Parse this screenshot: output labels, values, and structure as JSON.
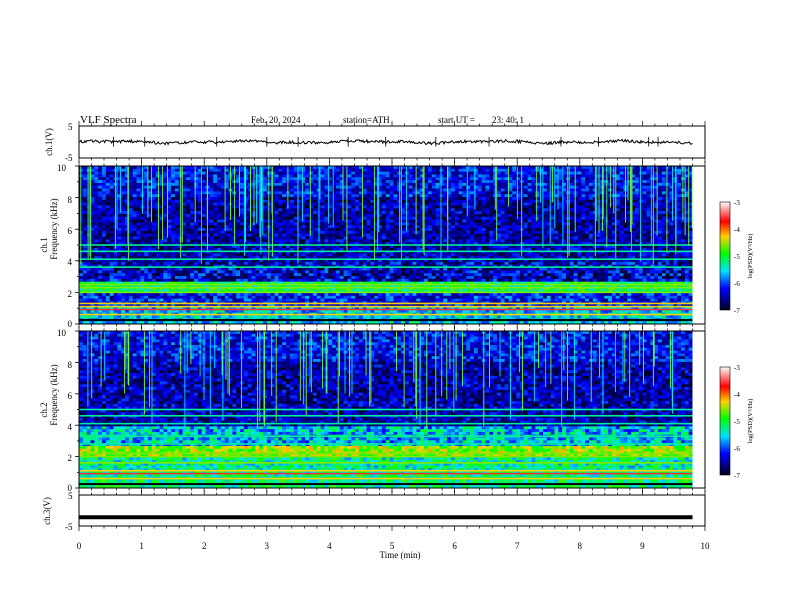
{
  "header": {
    "title": "VLF Spectra",
    "date": "Feb. 20, 2024",
    "station": "station=ATH",
    "start_ut": "start UT =",
    "start_time": "23: 40: 1"
  },
  "ch1_wave": {
    "ylabel": "ch.1(V)",
    "yticks": [
      "5",
      "-5"
    ]
  },
  "ch1_spec": {
    "ylabel_top": "ch.1",
    "ylabel": "Frequency (kHz)",
    "yticks": [
      "10",
      "8",
      "6",
      "4",
      "2",
      "0"
    ]
  },
  "ch2_spec": {
    "ylabel_top": "ch.2",
    "ylabel": "Frequency (kHz)",
    "yticks": [
      "10",
      "8",
      "6",
      "4",
      "2",
      "0"
    ]
  },
  "ch3_wave": {
    "ylabel": "ch.3(V)",
    "yticks": [
      "5",
      "-5"
    ]
  },
  "xaxis": {
    "label": "Time (min)",
    "ticks": [
      "0",
      "1",
      "2",
      "3",
      "4",
      "5",
      "6",
      "7",
      "8",
      "9",
      "10"
    ]
  },
  "colorbar": {
    "label": "log(PSD)(V²/Hz)",
    "ticks": [
      "-3",
      "-4",
      "-5",
      "-6",
      "-7"
    ],
    "colors": [
      "#ffffff",
      "#ff0000",
      "#ffff00",
      "#00ff00",
      "#00ffff",
      "#0000ff",
      "#000020"
    ]
  },
  "chart_data": [
    {
      "type": "line",
      "title": "",
      "xlabel": "Time (min)",
      "ylabel": "ch.1(V)",
      "xlim": [
        0,
        10
      ],
      "ylim": [
        -5,
        5
      ],
      "series": [
        {
          "x": [
            0,
            1,
            2,
            3,
            4,
            5,
            6,
            7,
            8,
            9,
            9.8
          ],
          "values": [
            0.3,
            0.2,
            0.0,
            0.2,
            0.1,
            0.1,
            0.3,
            0.0,
            0.1,
            -0.2,
            0.1
          ]
        }
      ]
    },
    {
      "type": "heatmap",
      "title": "",
      "xlabel": "Time (min)",
      "ylabel": "Frequency (kHz)",
      "xlim": [
        0,
        9.8
      ],
      "ylim": [
        0,
        10
      ],
      "color_scale": [
        -7,
        -3
      ],
      "bands_khz": [
        0.6,
        1.1,
        1.3,
        2.0,
        2.3,
        2.5,
        3.6,
        4.1,
        4.6,
        5.0
      ],
      "typical_log_psd": {
        "0-1": -5.5,
        "1-2": -6.0,
        "2-2.6": -5.0,
        "2.6-4": -6.2,
        "4-10": -6.5
      }
    },
    {
      "type": "heatmap",
      "title": "",
      "xlabel": "Time (min)",
      "ylabel": "Frequency (kHz)",
      "xlim": [
        0,
        9.8
      ],
      "ylim": [
        0,
        10
      ],
      "color_scale": [
        -7,
        -3
      ],
      "bands_khz": [
        0.6,
        1.1,
        1.6,
        2.0,
        2.2,
        2.8,
        3.3,
        4.1,
        4.6,
        5.0
      ],
      "typical_log_psd": {
        "0-1": -5.3,
        "1-2": -5.4,
        "2-2.6": -4.6,
        "2.6-4": -5.6,
        "4-10": -6.4
      }
    },
    {
      "type": "line",
      "title": "",
      "xlabel": "Time (min)",
      "ylabel": "ch.3(V)",
      "xlim": [
        0,
        10
      ],
      "ylim": [
        -5,
        5
      ],
      "series": [
        {
          "x": [
            0,
            9.8
          ],
          "values": [
            -2.2,
            -2.2
          ]
        }
      ]
    }
  ]
}
